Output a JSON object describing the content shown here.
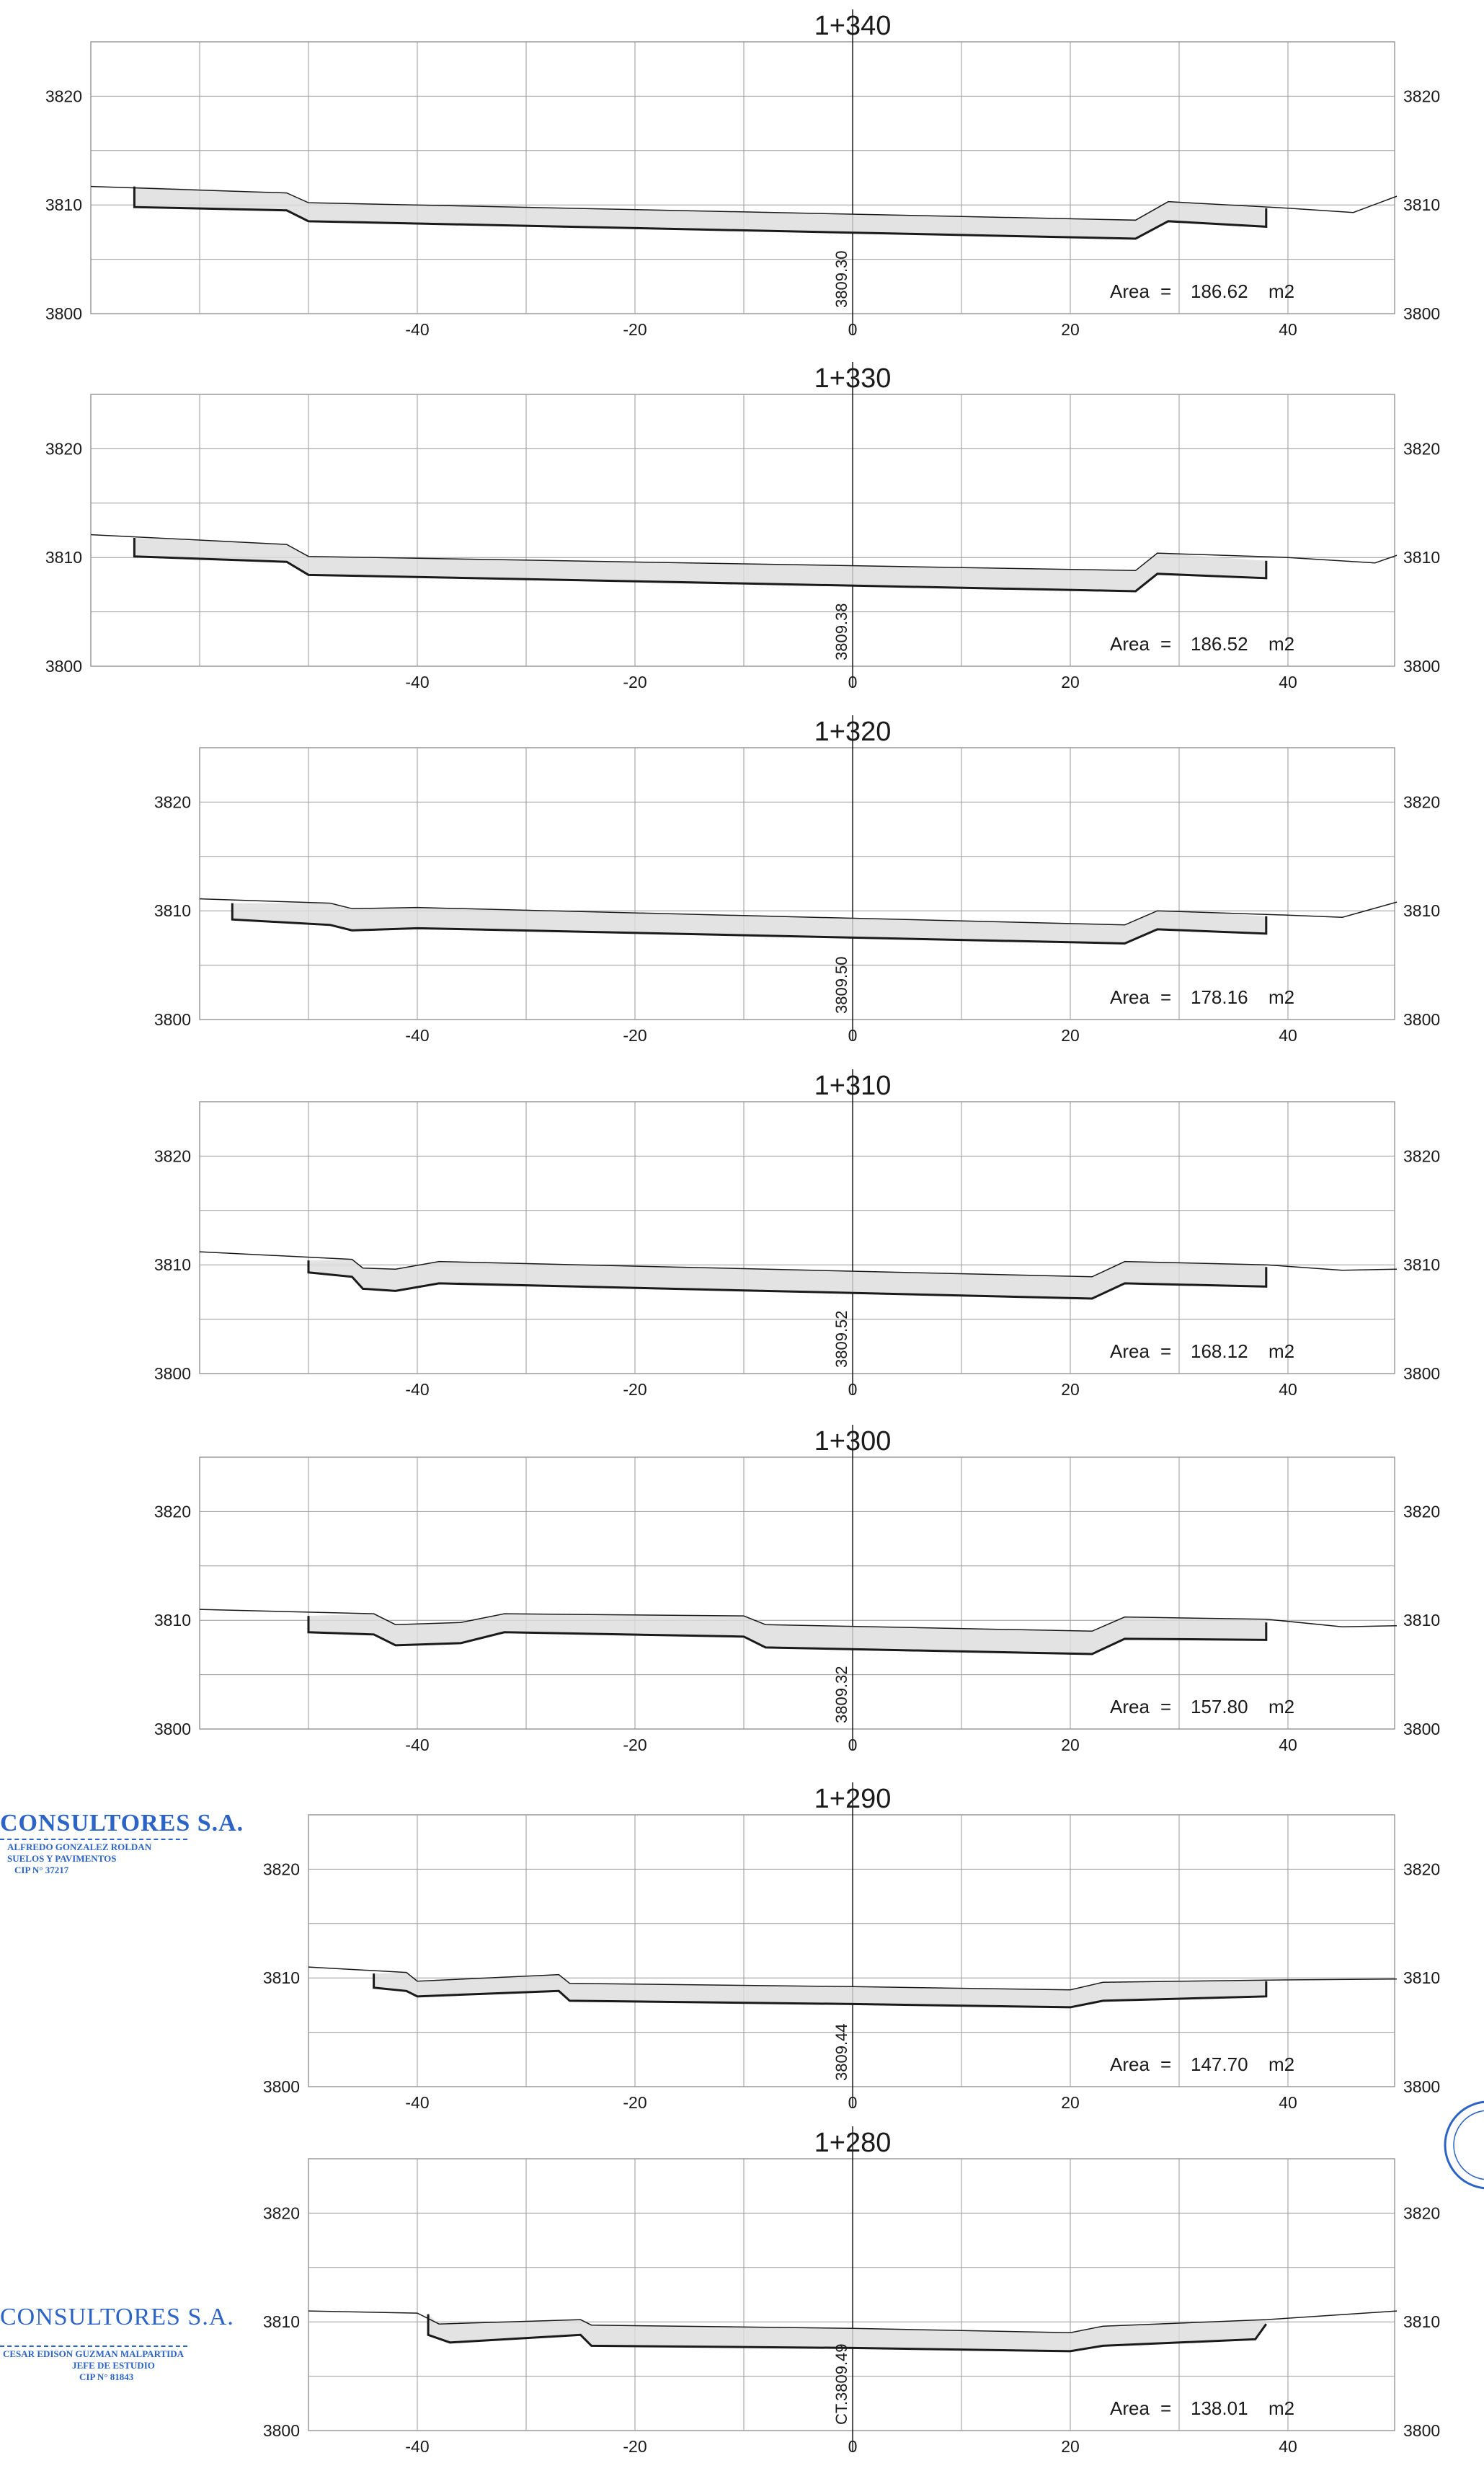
{
  "sheet": {
    "x_ticks": [
      -40,
      -20,
      0,
      20,
      40
    ],
    "y_ticks": [
      3800,
      3810,
      3820
    ],
    "area_label": "Area",
    "area_equals": "=",
    "area_unit": "m2",
    "colors": {
      "line": "#1a1a1a",
      "grid": "#9a9a9a",
      "fill": "#dcdcdc",
      "stamp": "#2b63c6"
    }
  },
  "chart_data": [
    {
      "type": "line",
      "title": "1+340",
      "axis_label": "3809.30",
      "area": "186.62",
      "xlim": [
        -70,
        50
      ],
      "ylim": [
        3800,
        3825
      ],
      "terrain": [
        [
          -70,
          3811.7
        ],
        [
          -52,
          3811.1
        ],
        [
          -50,
          3810.2
        ],
        [
          26,
          3808.6
        ],
        [
          29,
          3810.3
        ],
        [
          40,
          3809.7
        ],
        [
          46,
          3809.3
        ],
        [
          50,
          3810.8
        ]
      ],
      "design": [
        [
          -66,
          3811.7
        ],
        [
          -66,
          3809.8
        ],
        [
          -52,
          3809.5
        ],
        [
          -50,
          3808.5
        ],
        [
          26,
          3806.9
        ],
        [
          29,
          3808.5
        ],
        [
          38,
          3808.0
        ],
        [
          38,
          3809.7
        ]
      ]
    },
    {
      "type": "line",
      "title": "1+330",
      "axis_label": "3809.38",
      "area": "186.52",
      "xlim": [
        -70,
        50
      ],
      "ylim": [
        3800,
        3825
      ],
      "terrain": [
        [
          -70,
          3812.1
        ],
        [
          -52,
          3811.2
        ],
        [
          -50,
          3810.1
        ],
        [
          26,
          3808.8
        ],
        [
          28,
          3810.4
        ],
        [
          40,
          3810.0
        ],
        [
          48,
          3809.5
        ],
        [
          50,
          3810.2
        ]
      ],
      "design": [
        [
          -66,
          3811.8
        ],
        [
          -66,
          3810.1
        ],
        [
          -52,
          3809.6
        ],
        [
          -50,
          3808.4
        ],
        [
          26,
          3806.9
        ],
        [
          28,
          3808.5
        ],
        [
          38,
          3808.1
        ],
        [
          38,
          3809.7
        ]
      ]
    },
    {
      "type": "line",
      "title": "1+320",
      "axis_label": "3809.50",
      "area": "178.16",
      "xlim": [
        -60,
        50
      ],
      "ylim": [
        3800,
        3825
      ],
      "terrain": [
        [
          -60,
          3811.1
        ],
        [
          -48,
          3810.7
        ],
        [
          -46,
          3810.2
        ],
        [
          -40,
          3810.3
        ],
        [
          25,
          3808.7
        ],
        [
          28,
          3810.0
        ],
        [
          40,
          3809.6
        ],
        [
          45,
          3809.4
        ],
        [
          50,
          3810.8
        ]
      ],
      "design": [
        [
          -57,
          3810.7
        ],
        [
          -57,
          3809.2
        ],
        [
          -48,
          3808.7
        ],
        [
          -46,
          3808.2
        ],
        [
          -40,
          3808.4
        ],
        [
          25,
          3807.0
        ],
        [
          28,
          3808.3
        ],
        [
          38,
          3807.9
        ],
        [
          38,
          3809.5
        ]
      ]
    },
    {
      "type": "line",
      "title": "1+310",
      "axis_label": "3809.52",
      "area": "168.12",
      "xlim": [
        -60,
        50
      ],
      "ylim": [
        3800,
        3825
      ],
      "terrain": [
        [
          -60,
          3811.2
        ],
        [
          -46,
          3810.5
        ],
        [
          -45,
          3809.7
        ],
        [
          -42,
          3809.6
        ],
        [
          -38,
          3810.3
        ],
        [
          22,
          3808.9
        ],
        [
          25,
          3810.3
        ],
        [
          38,
          3810.0
        ],
        [
          45,
          3809.5
        ],
        [
          50,
          3809.6
        ]
      ],
      "design": [
        [
          -50,
          3810.4
        ],
        [
          -50,
          3809.3
        ],
        [
          -46,
          3808.9
        ],
        [
          -45,
          3807.8
        ],
        [
          -42,
          3807.6
        ],
        [
          -38,
          3808.3
        ],
        [
          22,
          3806.9
        ],
        [
          25,
          3808.3
        ],
        [
          38,
          3808.0
        ],
        [
          38,
          3809.8
        ]
      ]
    },
    {
      "type": "line",
      "title": "1+300",
      "axis_label": "3809.32",
      "area": "157.80",
      "xlim": [
        -60,
        50
      ],
      "ylim": [
        3800,
        3825
      ],
      "terrain": [
        [
          -60,
          3811.0
        ],
        [
          -44,
          3810.6
        ],
        [
          -42,
          3809.6
        ],
        [
          -36,
          3809.8
        ],
        [
          -32,
          3810.6
        ],
        [
          -10,
          3810.4
        ],
        [
          -8,
          3809.6
        ],
        [
          22,
          3809.0
        ],
        [
          25,
          3810.3
        ],
        [
          38,
          3810.1
        ],
        [
          45,
          3809.4
        ],
        [
          50,
          3809.5
        ]
      ],
      "design": [
        [
          -50,
          3810.4
        ],
        [
          -50,
          3808.9
        ],
        [
          -44,
          3808.7
        ],
        [
          -42,
          3807.7
        ],
        [
          -36,
          3807.9
        ],
        [
          -32,
          3808.9
        ],
        [
          -10,
          3808.5
        ],
        [
          -8,
          3807.5
        ],
        [
          22,
          3806.9
        ],
        [
          25,
          3808.3
        ],
        [
          38,
          3808.2
        ],
        [
          38,
          3809.8
        ]
      ]
    },
    {
      "type": "line",
      "title": "1+290",
      "axis_label": "3809.44",
      "area": "147.70",
      "xlim": [
        -50,
        50
      ],
      "ylim": [
        3800,
        3825
      ],
      "terrain": [
        [
          -50,
          3811.0
        ],
        [
          -41,
          3810.5
        ],
        [
          -40,
          3809.7
        ],
        [
          -27,
          3810.3
        ],
        [
          -26,
          3809.5
        ],
        [
          0,
          3809.2
        ],
        [
          20,
          3808.9
        ],
        [
          23,
          3809.6
        ],
        [
          38,
          3809.8
        ],
        [
          50,
          3809.9
        ]
      ],
      "design": [
        [
          -44,
          3810.4
        ],
        [
          -44,
          3809.1
        ],
        [
          -41,
          3808.8
        ],
        [
          -40,
          3808.3
        ],
        [
          -27,
          3808.8
        ],
        [
          -26,
          3807.9
        ],
        [
          0,
          3807.6
        ],
        [
          20,
          3807.3
        ],
        [
          23,
          3807.9
        ],
        [
          38,
          3808.3
        ],
        [
          38,
          3809.7
        ]
      ]
    },
    {
      "type": "line",
      "title": "1+280",
      "axis_label": "CT.3809.49",
      "area": "138.01",
      "xlim": [
        -50,
        50
      ],
      "ylim": [
        3800,
        3825
      ],
      "terrain": [
        [
          -50,
          3811.0
        ],
        [
          -40,
          3810.8
        ],
        [
          -38,
          3809.8
        ],
        [
          -25,
          3810.2
        ],
        [
          -24,
          3809.7
        ],
        [
          0,
          3809.4
        ],
        [
          20,
          3809.0
        ],
        [
          23,
          3809.6
        ],
        [
          38,
          3810.2
        ],
        [
          50,
          3811.0
        ]
      ],
      "design": [
        [
          -39,
          3810.7
        ],
        [
          -39,
          3808.8
        ],
        [
          -37,
          3808.1
        ],
        [
          -25,
          3808.8
        ],
        [
          -24,
          3807.8
        ],
        [
          0,
          3807.6
        ],
        [
          20,
          3807.3
        ],
        [
          23,
          3807.8
        ],
        [
          37,
          3808.4
        ],
        [
          38,
          3809.8
        ]
      ]
    }
  ],
  "stamps": [
    {
      "company": "CONSULTORES S.A.",
      "line1": "ALFREDO GONZALEZ ROLDAN",
      "line2": "SUELOS Y PAVIMENTOS",
      "line3": "CIP N° 37217"
    },
    {
      "company": "CONSULTORES S.A.",
      "line1": "CESAR EDISON GUZMAN MALPARTIDA",
      "line2": "JEFE DE ESTUDIO",
      "line3": "CIP N° 81843"
    }
  ]
}
